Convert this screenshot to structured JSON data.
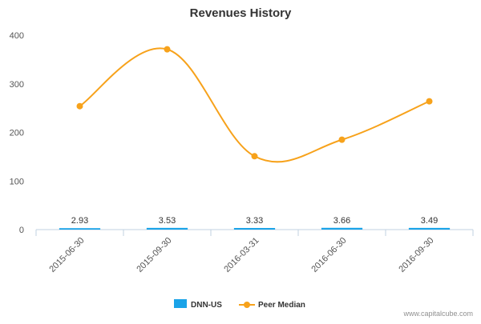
{
  "chart_data": {
    "type": "bar",
    "title": "Revenues History",
    "categories": [
      "2015-06-30",
      "2015-09-30",
      "2016-03-31",
      "2016-06-30",
      "2016-09-30"
    ],
    "ylim": [
      0,
      400
    ],
    "yticks": [
      "0",
      "100",
      "200",
      "300",
      "400"
    ],
    "grid": false,
    "legend_position": "bottom-center",
    "series": [
      {
        "name": "DNN-US",
        "type": "bar",
        "color": "#1aa3e8",
        "values": [
          2.93,
          3.53,
          3.33,
          3.66,
          3.49
        ],
        "labels": [
          "2.93",
          "3.53",
          "3.33",
          "3.66",
          "3.49"
        ]
      },
      {
        "name": "Peer Median",
        "type": "line",
        "color": "#f7a21b",
        "values": [
          254,
          371,
          151,
          185,
          264
        ]
      }
    ]
  },
  "credit": "www.capitalcube.com"
}
